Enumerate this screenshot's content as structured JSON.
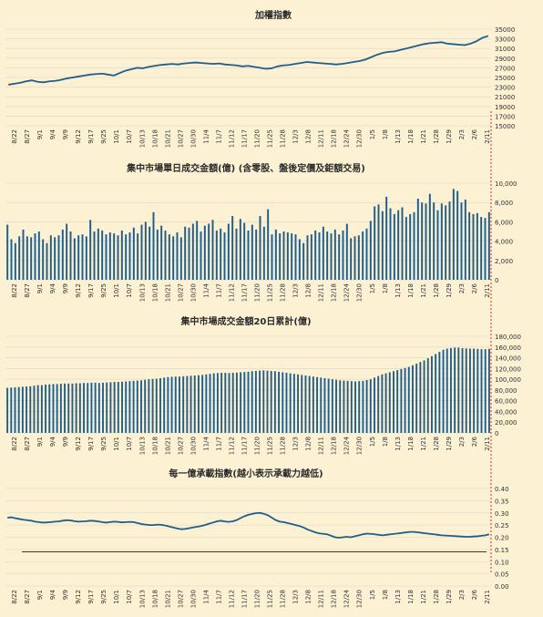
{
  "colors": {
    "background": "#FDF1D4",
    "series": "#1F5E8C",
    "grid": "#DCD6C6",
    "marker_line": "#C00000"
  },
  "x_labels": [
    "8/22",
    "8/27",
    "9/1",
    "9/4",
    "9/9",
    "9/12",
    "9/17",
    "9/25",
    "10/1",
    "10/7",
    "10/13",
    "10/18",
    "10/21",
    "10/27",
    "10/30",
    "11/4",
    "11/7",
    "11/12",
    "11/17",
    "11/20",
    "11/25",
    "11/28",
    "12/3",
    "12/8",
    "12/11",
    "12/18",
    "12/24",
    "12/30",
    "1/5",
    "1/8",
    "1/13",
    "1/18",
    "1/21",
    "1/28",
    "1/29",
    "2/3",
    "2/6",
    "2/11"
  ],
  "chart_data": [
    {
      "type": "line",
      "title": "加權指數",
      "ylim": [
        15000,
        35000
      ],
      "y_ticks": [
        "35000",
        "33000",
        "31000",
        "29000",
        "27000",
        "25000",
        "23000",
        "21000",
        "19000",
        "17000",
        "15000"
      ],
      "series": [
        {
          "values": [
            23500,
            23700,
            23900,
            24200,
            24400,
            24100,
            24000,
            24200,
            24300,
            24500,
            24800,
            25000,
            25200,
            25400,
            25600,
            25700,
            25800,
            25600,
            25400,
            25900,
            26400,
            26700,
            27000,
            26900,
            27200,
            27400,
            27600,
            27700,
            27800,
            27700,
            27900,
            28000,
            28100,
            28000,
            27900,
            27800,
            27900,
            27700,
            27600,
            27500,
            27300,
            27400,
            27200,
            27000,
            26800,
            26900,
            27300,
            27500,
            27600,
            27800,
            28000,
            28200,
            28100,
            28000,
            27900,
            27800,
            27700,
            27800,
            28000,
            28200,
            28400,
            28700,
            29200,
            29700,
            30100,
            30300,
            30400,
            30700,
            31000,
            31300,
            31600,
            31900,
            32100,
            32200,
            32300,
            32000,
            31900,
            31800,
            31700,
            32000,
            32500,
            33200,
            33600
          ]
        }
      ],
      "reference_line": {
        "start_index": 80,
        "value": 15000
      }
    },
    {
      "type": "bar",
      "title": "集中市場單日成交金額(億) (含零股、盤後定價及鉅額交易)",
      "ylim": [
        0,
        10000
      ],
      "y_ticks": [
        "10,000",
        "8,000",
        "6,000",
        "4,000",
        "2,000",
        "0"
      ],
      "series": [
        {
          "values": [
            5700,
            4200,
            3800,
            4500,
            5200,
            4500,
            4400,
            4800,
            5000,
            4200,
            3800,
            4600,
            4400,
            4600,
            5200,
            5800,
            5000,
            4300,
            4600,
            4700,
            4500,
            6200,
            5000,
            5300,
            5100,
            4700,
            4900,
            4800,
            4600,
            5100,
            4700,
            4900,
            5400,
            4800,
            5700,
            6000,
            5500,
            7000,
            5200,
            5600,
            5100,
            4700,
            4500,
            4900,
            4400,
            5500,
            5400,
            5800,
            6100,
            5000,
            5600,
            5800,
            6200,
            5100,
            5300,
            4900,
            5800,
            6600,
            5300,
            6300,
            5900,
            5100,
            5700,
            5200,
            6600,
            5500,
            7300,
            4700,
            5200,
            4800,
            5000,
            4900,
            4800,
            4700,
            4200,
            3800,
            4600,
            4700,
            5100,
            4900,
            5500,
            5000,
            4800,
            5200,
            4700,
            5100,
            5800,
            4300,
            4500,
            4600,
            5000,
            5300,
            6100,
            7600,
            7800,
            7100,
            8600,
            7400,
            6800,
            7200,
            7500,
            6500,
            6800,
            7000,
            8400,
            8000,
            7900,
            8900,
            8000,
            7200,
            7900,
            7700,
            8100,
            9400,
            9200,
            8000,
            8300,
            7000,
            6800,
            6900,
            6500,
            6400,
            7000
          ]
        }
      ]
    },
    {
      "type": "bar",
      "title": "集中市場成交金額20日累計(億)",
      "ylim": [
        0,
        180000
      ],
      "y_ticks": [
        "180,000",
        "160,000",
        "140,000",
        "120,000",
        "100,000",
        "80,000",
        "60,000",
        "40,000",
        "20,000",
        "0"
      ],
      "series": [
        {
          "values": [
            84000,
            84500,
            85000,
            85500,
            86000,
            86500,
            87000,
            88000,
            89000,
            89000,
            90000,
            90500,
            91000,
            91000,
            91500,
            92000,
            92000,
            92000,
            92500,
            92500,
            93000,
            93000,
            93500,
            93500,
            93000,
            93500,
            94000,
            94500,
            95000,
            95000,
            95500,
            96000,
            96500,
            97000,
            97500,
            98000,
            99000,
            100000,
            100500,
            101000,
            102000,
            103000,
            104000,
            104500,
            105000,
            105000,
            105500,
            106000,
            106500,
            107000,
            107500,
            108000,
            109000,
            110000,
            111000,
            111500,
            112000,
            112000,
            111500,
            112000,
            112500,
            113000,
            113500,
            114000,
            115000,
            115500,
            116000,
            116500,
            116000,
            115500,
            115000,
            114000,
            113000,
            112000,
            111000,
            110000,
            109000,
            108000,
            107000,
            106000,
            105000,
            104000,
            103000,
            102000,
            101000,
            100000,
            99000,
            98000,
            97500,
            97000,
            96500,
            96000,
            96500,
            97000,
            98500,
            100000,
            103000,
            106000,
            109000,
            111000,
            113000,
            115000,
            117000,
            119000,
            121000,
            123000,
            126000,
            129000,
            132000,
            135000,
            139000,
            143000,
            147000,
            151000,
            155000,
            157000,
            158000,
            159000,
            159000,
            158000,
            157500,
            157000,
            157000,
            156500,
            156000,
            156000,
            156500
          ]
        }
      ]
    },
    {
      "type": "line",
      "title": "每一億承載指數(越小表示承載力越低)",
      "ylim": [
        0.0,
        0.4
      ],
      "y_ticks": [
        "0.40",
        "0.35",
        "0.30",
        "0.25",
        "0.20",
        "0.15",
        "0.10",
        "0.05",
        "0.00"
      ],
      "series": [
        {
          "values": [
            0.28,
            0.282,
            0.278,
            0.275,
            0.272,
            0.27,
            0.268,
            0.264,
            0.262,
            0.26,
            0.261,
            0.262,
            0.264,
            0.265,
            0.268,
            0.27,
            0.269,
            0.266,
            0.264,
            0.265,
            0.266,
            0.268,
            0.267,
            0.265,
            0.262,
            0.26,
            0.262,
            0.264,
            0.263,
            0.261,
            0.262,
            0.263,
            0.262,
            0.258,
            0.254,
            0.252,
            0.25,
            0.25,
            0.252,
            0.251,
            0.248,
            0.244,
            0.24,
            0.236,
            0.233,
            0.234,
            0.237,
            0.24,
            0.243,
            0.246,
            0.25,
            0.255,
            0.26,
            0.265,
            0.268,
            0.265,
            0.263,
            0.265,
            0.27,
            0.278,
            0.286,
            0.292,
            0.296,
            0.299,
            0.3,
            0.296,
            0.29,
            0.28,
            0.27,
            0.264,
            0.262,
            0.258,
            0.254,
            0.25,
            0.246,
            0.24,
            0.232,
            0.226,
            0.22,
            0.216,
            0.214,
            0.212,
            0.206,
            0.2,
            0.198,
            0.2,
            0.202,
            0.2,
            0.204,
            0.208,
            0.212,
            0.215,
            0.214,
            0.212,
            0.21,
            0.208,
            0.21,
            0.212,
            0.214,
            0.216,
            0.218,
            0.22,
            0.222,
            0.222,
            0.22,
            0.218,
            0.216,
            0.214,
            0.212,
            0.21,
            0.208,
            0.207,
            0.206,
            0.205,
            0.204,
            0.203,
            0.202,
            0.202,
            0.203,
            0.204,
            0.206,
            0.208,
            0.212
          ]
        }
      ],
      "threshold": 0.14
    }
  ]
}
